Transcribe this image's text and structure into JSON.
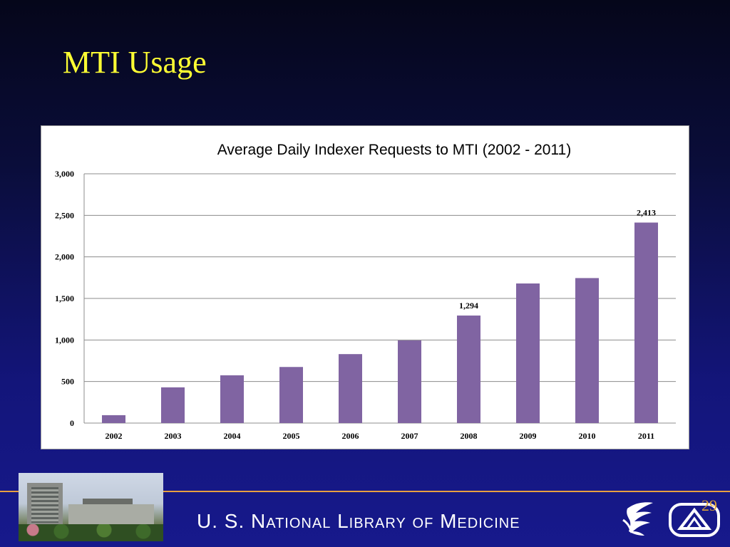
{
  "slide": {
    "title": "MTI Usage",
    "footer_org": "U. S. National Library of Medicine",
    "page_number": "29"
  },
  "colors": {
    "title": "#ffff33",
    "bar": "#8064a2",
    "footer_rule": "#e8a040"
  },
  "chart_data": {
    "type": "bar",
    "title": "Average Daily Indexer Requests to MTI (2002 - 2011)",
    "xlabel": "",
    "ylabel": "",
    "categories": [
      "2002",
      "2003",
      "2004",
      "2005",
      "2006",
      "2007",
      "2008",
      "2009",
      "2010",
      "2011"
    ],
    "values": [
      95,
      430,
      575,
      675,
      830,
      995,
      1294,
      1680,
      1745,
      2413
    ],
    "data_labels": {
      "2008": "1,294",
      "2011": "2,413"
    },
    "ylim": [
      0,
      3000
    ],
    "yticks": [
      0,
      500,
      1000,
      1500,
      2000,
      2500,
      3000
    ],
    "ytick_labels": [
      "0",
      "500",
      "1,000",
      "1,500",
      "2,000",
      "2,500",
      "3,000"
    ],
    "grid": true,
    "legend": "none"
  }
}
